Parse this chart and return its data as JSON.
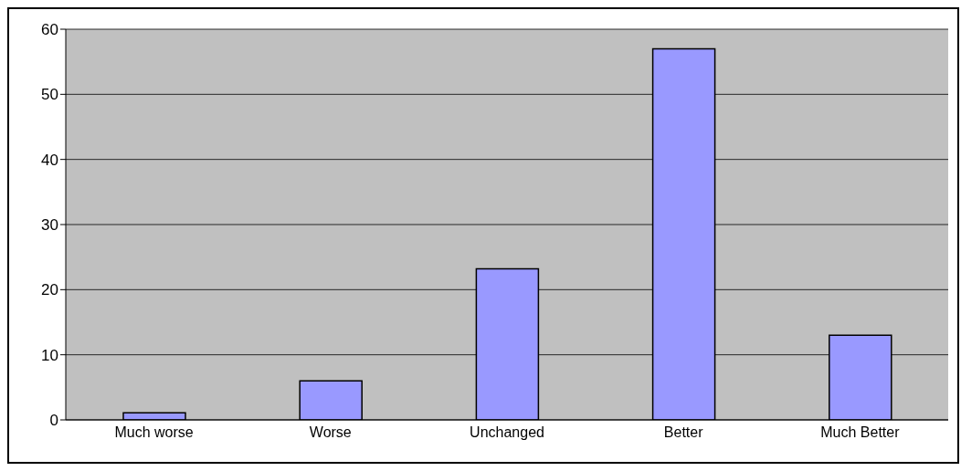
{
  "chart_data": {
    "type": "bar",
    "categories": [
      "Much worse",
      "Worse",
      "Unchanged",
      "Better",
      "Much Better"
    ],
    "values": [
      1.1,
      6,
      23.2,
      57,
      13
    ],
    "color": "#9999ff",
    "ylim": [
      0,
      60
    ],
    "yticks": [
      0,
      10,
      20,
      30,
      40,
      50,
      60
    ],
    "grid": "y"
  }
}
